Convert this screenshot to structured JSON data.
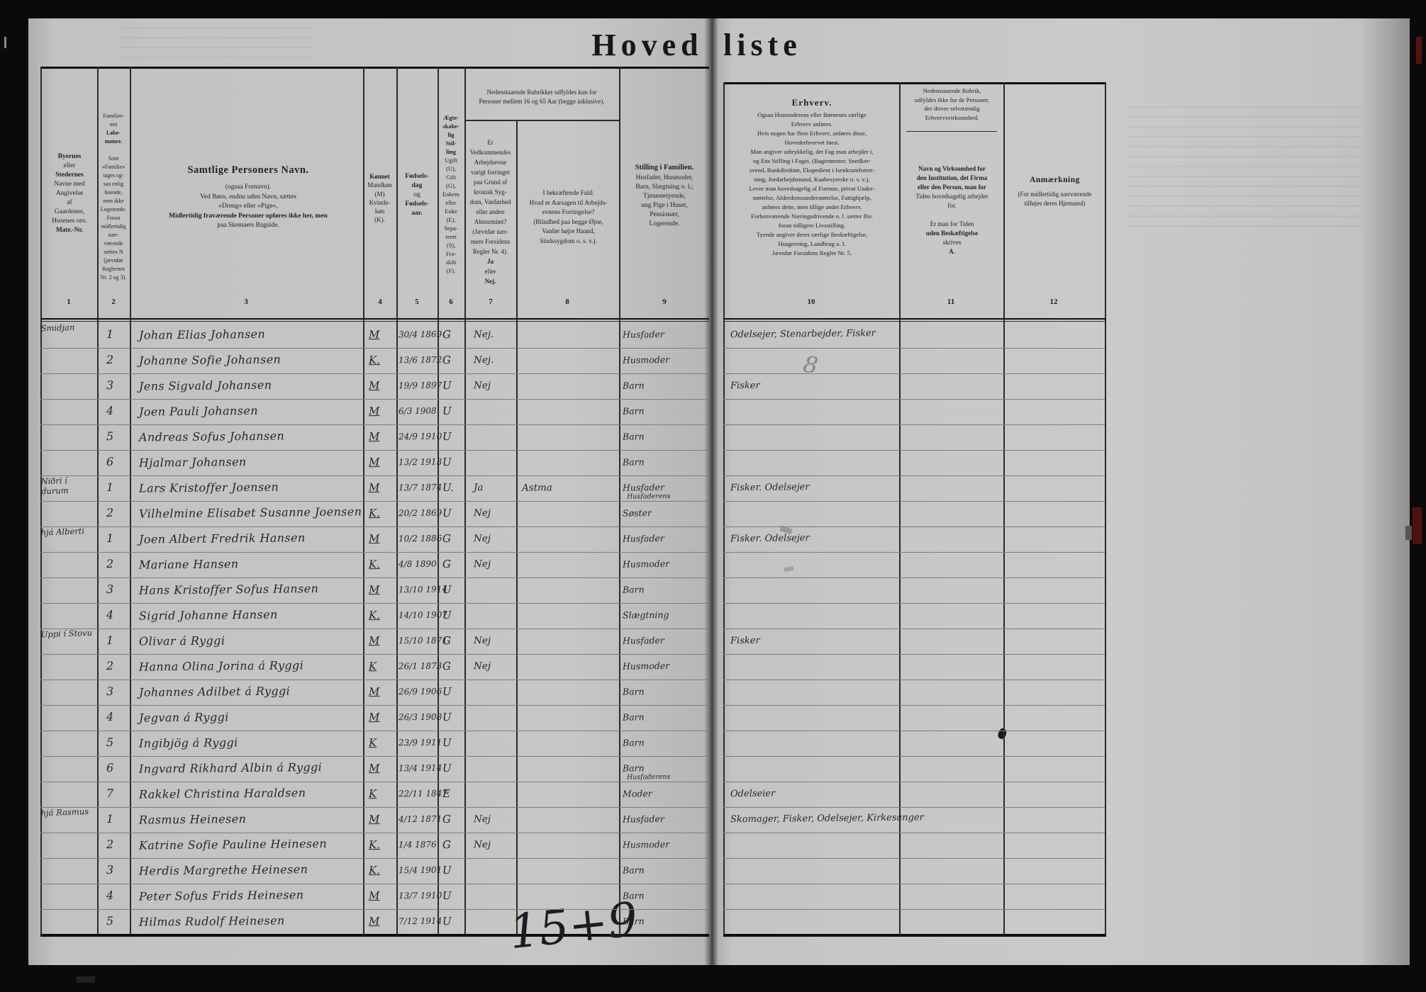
{
  "document": {
    "title_left": "Hoved",
    "title_right": "liste"
  },
  "left_header": {
    "col1_lines": [
      [
        "Byernes",
        1
      ],
      [
        "eller",
        0
      ],
      [
        "Stedernes",
        1
      ],
      [
        "Navne med",
        0
      ],
      [
        "Angivelse",
        0
      ],
      [
        "af",
        0
      ],
      [
        "Gaardenes,",
        0
      ],
      [
        "Husenes osv.",
        0
      ],
      [
        "Matr.-Nr.",
        1
      ]
    ],
    "col2_lines": [
      [
        "Familier-",
        0
      ],
      [
        "nes",
        0
      ],
      [
        "Løbe-",
        1
      ],
      [
        "numre.",
        1
      ],
      [
        "",
        0
      ],
      [
        "Som",
        0
      ],
      [
        "»Familie«",
        0
      ],
      [
        "tages og-",
        0
      ],
      [
        "saa enlig",
        0
      ],
      [
        "boende,",
        0
      ],
      [
        "men ikke",
        0
      ],
      [
        "Logerende.",
        0
      ],
      [
        "Foran",
        0
      ],
      [
        "midlertidig",
        0
      ],
      [
        "nær-",
        0
      ],
      [
        "værende",
        0
      ],
      [
        "sættes N",
        0
      ],
      [
        "(jævnfør",
        0
      ],
      [
        "Reglernes",
        0
      ],
      [
        "Nr. 2 og 3).",
        0
      ]
    ],
    "col3_title": "Samtlige Personers Navn.",
    "col3_lines": [
      [
        "(ogsaa Fornavn).",
        0
      ],
      [
        "Ved Børn, endnu uden Navn, sættes",
        0
      ],
      [
        "»Dreng« eller »Pige«,",
        0
      ],
      [
        "Midlertidig fraværende Personer opføres ikke her, men",
        1
      ],
      [
        "paa Skemaets Bagside.",
        0
      ]
    ],
    "col4_lines": [
      [
        "Kønnet",
        1
      ],
      [
        "Mandkøn",
        0
      ],
      [
        "(M)",
        0
      ],
      [
        "Kvinde-",
        0
      ],
      [
        "køn",
        0
      ],
      [
        "(K).",
        0
      ]
    ],
    "col5_lines": [
      [
        "Fødsels-",
        1
      ],
      [
        "dag",
        1
      ],
      [
        "og",
        0
      ],
      [
        "Fødsels-",
        1
      ],
      [
        "aar.",
        1
      ]
    ],
    "col6_lines": [
      [
        "Ægte-",
        1
      ],
      [
        "skabe-",
        1
      ],
      [
        "lig",
        1
      ],
      [
        "Stil-",
        1
      ],
      [
        "ling",
        1
      ],
      [
        "Ugift",
        0
      ],
      [
        "(U),",
        0
      ],
      [
        "Gift",
        0
      ],
      [
        "(G),",
        0
      ],
      [
        "Enkem",
        0
      ],
      [
        "eller",
        0
      ],
      [
        "Enke",
        0
      ],
      [
        "(E),",
        0
      ],
      [
        "Sepa-",
        0
      ],
      [
        "reret",
        0
      ],
      [
        "(S),",
        0
      ],
      [
        "Fra-",
        0
      ],
      [
        "skilt",
        0
      ],
      [
        "(F).",
        0
      ]
    ],
    "note78_lines": [
      [
        "Nedenstaaende Rubrikker udfyldes kun for",
        0
      ],
      [
        "Personer mellem 16 og 65 Aar (begge inklusive).",
        0
      ]
    ],
    "col7_lines": [
      [
        "Er",
        0
      ],
      [
        "Vedkommendes",
        0
      ],
      [
        "Arbejdsevne",
        0
      ],
      [
        "varigt forringet",
        0
      ],
      [
        "paa Grund af",
        0
      ],
      [
        "kronisk Syg-",
        0
      ],
      [
        "dom, Vanførhed",
        0
      ],
      [
        "eller anden",
        0
      ],
      [
        "Abnormitet?",
        0
      ],
      [
        "(Jævnfør nær-",
        0
      ],
      [
        "mere Forsidens",
        0
      ],
      [
        "Regler Nr. 4).",
        0
      ],
      [
        "Ja",
        1
      ],
      [
        "eller",
        0
      ],
      [
        "Nej.",
        1
      ]
    ],
    "col8_lines": [
      [
        "I bekræftende Fald:",
        0
      ],
      [
        "Hvad er Aarsagen til Arbejds-",
        0
      ],
      [
        "evnens Forringelse?",
        0
      ],
      [
        "(Blindhed paa begge Øjne,",
        0
      ],
      [
        "Vanfør højre Haand,",
        0
      ],
      [
        "Sindssygdom o. s. v.).",
        0
      ]
    ],
    "col9_lines": [
      [
        "Stilling i Familien.",
        1
      ],
      [
        "Husfader, Husmoder,",
        0
      ],
      [
        "Barn, Slægtning o. l.;",
        0
      ],
      [
        "Tjenestetyende,",
        0
      ],
      [
        "ung Pige i Huset,",
        0
      ],
      [
        "Pensionær,",
        0
      ],
      [
        "Logerende.",
        0
      ]
    ],
    "col_numbers": [
      "1",
      "2",
      "3",
      "4",
      "5",
      "6",
      "7",
      "8",
      "9"
    ]
  },
  "right_header": {
    "col10_lines": [
      [
        "Erhverv.",
        1
      ],
      [
        "Ogsaa Husmoderens eller Børnenes særlige",
        0
      ],
      [
        "Erhverv anføres.",
        0
      ],
      [
        "Hvis nogen har flere Erhverv, anføres disse,",
        0
      ],
      [
        "Hovederhvervet først.",
        0
      ],
      [
        "Man angiver udtrykkelig, det Fag man arbejder i,",
        0
      ],
      [
        "og Ens Stilling i Faget, (Bagermester, Snedker-",
        0
      ],
      [
        "svend, Bankdirektør, Ekspedient i Isenkramforret-",
        0
      ],
      [
        "ning, Jordarbejdsmand, Kaabesyerske o. s. v.),",
        0
      ],
      [
        "Lever man hovedsagelig af Formue, privat Under-",
        0
      ],
      [
        "støttelse, Alderdomsunderstøttelse, Fattighjælp,",
        0
      ],
      [
        "anføres dette, men tillige andet Erhverv.",
        0
      ],
      [
        "Forhenværende Næringsdrivende o. l. sætter fhv.",
        0
      ],
      [
        "foran tidligere Livsstilling.",
        0
      ],
      [
        "Tyende angiver deres særlige Beskæftigelse,",
        0
      ],
      [
        "Husgerning, Landbrug o. l.",
        0
      ],
      [
        "Jævnfør Forsidens Regler Nr. 5.",
        0
      ]
    ],
    "col11_top_lines": [
      [
        "Nedenstaaende Rubrik,",
        0
      ],
      [
        "udfyldes ikke for de Personer,",
        0
      ],
      [
        "der driver selvstændig",
        0
      ],
      [
        "Erhvervsvirksomhed.",
        0
      ]
    ],
    "col11_main_lines": [
      [
        "Navn og Virksomhed for",
        1
      ],
      [
        "den Institution, det Firma",
        1
      ],
      [
        "eller den Person, man for",
        1
      ],
      [
        "Tiden hovedsagelig arbejder",
        0
      ],
      [
        "for.",
        0
      ],
      [
        "",
        0
      ],
      [
        "Er man for Tiden",
        0
      ],
      [
        "uden Beskæftigelse",
        1
      ],
      [
        "skrives",
        0
      ],
      [
        "A.",
        1
      ]
    ],
    "col12_lines": [
      [
        "Anmærkning",
        1
      ],
      [
        "(For midlertidig nærværende",
        0
      ],
      [
        "tilføjes deres Hjemsted)",
        0
      ]
    ],
    "col_numbers": [
      "10",
      "11",
      "12"
    ]
  },
  "rows": [
    {
      "place": "Smidjan",
      "num": "1",
      "name": "Johan Elias Johansen",
      "sex": "M",
      "birth": "30/4 1869",
      "marital": "G",
      "janej": "Nej.",
      "cause": "",
      "stilling": "Husfader",
      "stilling_sub": "",
      "erhverv": "Odelsejer, Stenarbejder, Fisker"
    },
    {
      "place": "",
      "num": "2",
      "name": "Johanne Sofie Johansen",
      "sex": "K.",
      "birth": "13/6 1872",
      "marital": "G",
      "janej": "Nej.",
      "cause": "",
      "stilling": "Husmoder",
      "stilling_sub": "",
      "erhverv": ""
    },
    {
      "place": "",
      "num": "3",
      "name": "Jens Sigvald Johansen",
      "sex": "M",
      "birth": "19/9 1897",
      "marital": "U",
      "janej": "Nej",
      "cause": "",
      "stilling": "Barn",
      "stilling_sub": "",
      "erhverv": "Fisker"
    },
    {
      "place": "",
      "num": "4",
      "name": "Joen Pauli Johansen",
      "sex": "M",
      "birth": "6/3 1908",
      "marital": "U",
      "janej": "",
      "cause": "",
      "stilling": "Barn",
      "stilling_sub": "",
      "erhverv": ""
    },
    {
      "place": "",
      "num": "5",
      "name": "Andreas Sofus Johansen",
      "sex": "M",
      "birth": "24/9 1910",
      "marital": "U",
      "janej": "",
      "cause": "",
      "stilling": "Barn",
      "stilling_sub": "",
      "erhverv": ""
    },
    {
      "place": "",
      "num": "6",
      "name": "Hjalmar Johansen",
      "sex": "M",
      "birth": "13/2 1913",
      "marital": "U",
      "janej": "",
      "cause": "",
      "stilling": "Barn",
      "stilling_sub": "",
      "erhverv": ""
    },
    {
      "place": "Niðri í durum",
      "num": "1",
      "name": "Lars Kristoffer Joensen",
      "sex": "M",
      "birth": "13/7 1874",
      "marital": "U.",
      "janej": "Ja",
      "cause": "Astma",
      "stilling": "Husfader",
      "stilling_sub": "Husfaderens",
      "erhverv": "Fisker. Odelsejer"
    },
    {
      "place": "",
      "num": "2",
      "name": "Vilhelmine Elisabet Susanne Joensen",
      "sex": "K.",
      "birth": "20/2 1869",
      "marital": "U",
      "janej": "Nej",
      "cause": "",
      "stilling": "Søster",
      "stilling_sub": "",
      "erhverv": ""
    },
    {
      "place": "hjá Alberti",
      "num": "1",
      "name": "Joen Albert Fredrik Hansen",
      "sex": "M",
      "birth": "10/2 1886",
      "marital": "G",
      "janej": "Nej",
      "cause": "",
      "stilling": "Husfader",
      "stilling_sub": "",
      "erhverv": "Fisker. Odelsejer"
    },
    {
      "place": "",
      "num": "2",
      "name": "Mariane Hansen",
      "sex": "K.",
      "birth": "4/8 1890",
      "marital": "G",
      "janej": "Nej",
      "cause": "",
      "stilling": "Husmoder",
      "stilling_sub": "",
      "erhverv": ""
    },
    {
      "place": "",
      "num": "3",
      "name": "Hans Kristoffer Sofus Hansen",
      "sex": "M",
      "birth": "13/10 1914",
      "marital": "U",
      "janej": "",
      "cause": "",
      "stilling": "Barn",
      "stilling_sub": "",
      "erhverv": ""
    },
    {
      "place": "",
      "num": "4",
      "name": "Sigrid Johanne Hansen",
      "sex": "K.",
      "birth": "14/10 1907",
      "marital": "U",
      "janej": "",
      "cause": "",
      "stilling": "Slægtning",
      "stilling_sub": "",
      "erhverv": ""
    },
    {
      "place": "Uppi í Stovu",
      "num": "1",
      "name": "Olivar á Ryggi",
      "sex": "M",
      "birth": "15/10 1871",
      "marital": "G",
      "janej": "Nej",
      "cause": "",
      "stilling": "Husfader",
      "stilling_sub": "",
      "erhverv": "Fisker"
    },
    {
      "place": "",
      "num": "2",
      "name": "Hanna Olina Jorina á Ryggi",
      "sex": "K",
      "birth": "26/1 1873",
      "marital": "G",
      "janej": "Nej",
      "cause": "",
      "stilling": "Husmoder",
      "stilling_sub": "",
      "erhverv": ""
    },
    {
      "place": "",
      "num": "3",
      "name": "Johannes Adilbet á Ryggi",
      "sex": "M",
      "birth": "26/9 1906",
      "marital": "U",
      "janej": "",
      "cause": "",
      "stilling": "Barn",
      "stilling_sub": "",
      "erhverv": ""
    },
    {
      "place": "",
      "num": "4",
      "name": "Jegvan á Ryggi",
      "sex": "M",
      "birth": "26/3 1908",
      "marital": "U",
      "janej": "",
      "cause": "",
      "stilling": "Barn",
      "stilling_sub": "",
      "erhverv": ""
    },
    {
      "place": "",
      "num": "5",
      "name": "Ingibjög á Ryggi",
      "sex": "K",
      "birth": "23/9 1911",
      "marital": "U",
      "janej": "",
      "cause": "",
      "stilling": "Barn",
      "stilling_sub": "",
      "erhverv": ""
    },
    {
      "place": "",
      "num": "6",
      "name": "Ingvard Rikhard Albin á Ryggi",
      "sex": "M",
      "birth": "13/4 1914",
      "marital": "U",
      "janej": "",
      "cause": "",
      "stilling": "Barn",
      "stilling_sub": "Husfaderens",
      "erhverv": ""
    },
    {
      "place": "",
      "num": "7",
      "name": "Rakkel Christina Haraldsen",
      "sex": "K",
      "birth": "22/11 1847",
      "marital": "E",
      "janej": "",
      "cause": "",
      "stilling": "Moder",
      "stilling_sub": "",
      "erhverv": "Odelseier"
    },
    {
      "place": "hjá Rasmus",
      "num": "1",
      "name": "Rasmus Heinesen",
      "sex": "M",
      "birth": "4/12 1871",
      "marital": "G",
      "janej": "Nej",
      "cause": "",
      "stilling": "Husfader",
      "stilling_sub": "",
      "erhverv": "Skomager, Fisker, Odelsejer, Kirkesanger"
    },
    {
      "place": "",
      "num": "2",
      "name": "Katrine Sofie Pauline Heinesen",
      "sex": "K.",
      "birth": "1/4 1876",
      "marital": "G",
      "janej": "Nej",
      "cause": "",
      "stilling": "Husmoder",
      "stilling_sub": "",
      "erhverv": ""
    },
    {
      "place": "",
      "num": "3",
      "name": "Herdis Margrethe Heinesen",
      "sex": "K.",
      "birth": "15/4 1901",
      "marital": "U",
      "janej": "",
      "cause": "",
      "stilling": "Barn",
      "stilling_sub": "",
      "erhverv": ""
    },
    {
      "place": "",
      "num": "4",
      "name": "Peter Sofus Frids Heinesen",
      "sex": "M",
      "birth": "13/7 1910",
      "marital": "U",
      "janej": "",
      "cause": "",
      "stilling": "Barn",
      "stilling_sub": "",
      "erhverv": ""
    },
    {
      "place": "",
      "num": "5",
      "name": "Hilmas Rudolf Heinesen",
      "sex": "M",
      "birth": "7/12 1914",
      "marital": "U",
      "janej": "",
      "cause": "",
      "stilling": "Barn",
      "stilling_sub": "",
      "erhverv": ""
    }
  ],
  "annotations": {
    "tally": "15+9",
    "pencil_mark": "8"
  }
}
